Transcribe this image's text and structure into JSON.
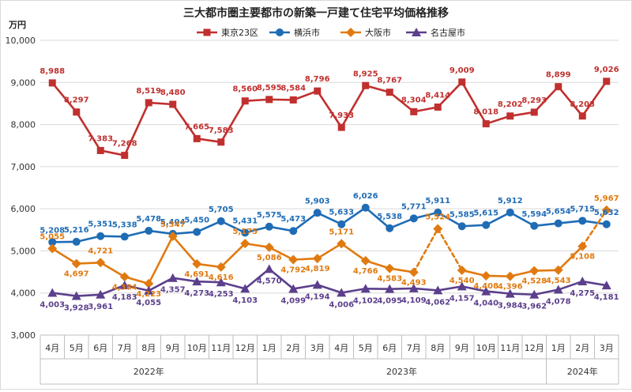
{
  "chart_data": {
    "type": "line",
    "title": "三大都市圏主要都市の新築一戸建て住宅平均価格推移",
    "ylabel": "万円",
    "ylim": [
      3000,
      10000
    ],
    "yticks": [
      3000,
      4000,
      5000,
      6000,
      7000,
      8000,
      9000,
      10000
    ],
    "ytick_labels": [
      "3,000",
      "4,000",
      "5,000",
      "6,000",
      "7,000",
      "8,000",
      "9,000",
      "10,000"
    ],
    "grid": true,
    "legend_position": "top",
    "categories": [
      "4月",
      "5月",
      "6月",
      "7月",
      "8月",
      "9月",
      "10月",
      "11月",
      "12月",
      "1月",
      "2月",
      "3月",
      "4月",
      "5月",
      "6月",
      "7月",
      "8月",
      "9月",
      "10月",
      "11月",
      "12月",
      "1月",
      "2月",
      "3月"
    ],
    "year_groups": [
      {
        "label": "2022年",
        "start": 0,
        "end": 8
      },
      {
        "label": "2023年",
        "start": 9,
        "end": 20
      },
      {
        "label": "2024年",
        "start": 21,
        "end": 23
      }
    ],
    "series": [
      {
        "name": "東京23区",
        "color": "#c0302f",
        "marker": "square",
        "values": [
          8988,
          8297,
          7383,
          7268,
          8519,
          8480,
          7665,
          7583,
          8560,
          8595,
          8584,
          8796,
          7933,
          8925,
          8767,
          8304,
          8414,
          9009,
          8018,
          8202,
          8293,
          8899,
          8203,
          9026
        ],
        "labels": [
          "8,988",
          "8,297",
          "7,383",
          "7,268",
          "8,519",
          "8,480",
          "7,665",
          "7,583",
          "8,560",
          "8,595",
          "8,584",
          "8,796",
          "7,933",
          "8,925",
          "8,767",
          "8,304",
          "8,414",
          "9,009",
          "8,018",
          "8,202",
          "8,293",
          "8,899",
          "8,203",
          "9,026"
        ]
      },
      {
        "name": "横浜市",
        "color": "#1f6cb5",
        "marker": "circle",
        "values": [
          5208,
          5216,
          5351,
          5338,
          5478,
          5404,
          5450,
          5705,
          5431,
          5575,
          5473,
          5903,
          5633,
          6026,
          5538,
          5771,
          5911,
          5585,
          5615,
          5912,
          5594,
          5654,
          5715,
          5632
        ],
        "labels": [
          "5,208",
          "5,216",
          "5,351",
          "5,338",
          "5,478",
          "5,404",
          "5,450",
          "5,705",
          "5,431",
          "5,575",
          "5,473",
          "5,903",
          "5,633",
          "6,026",
          "5,538",
          "5,771",
          "5,911",
          "5,585",
          "5,615",
          "5,912",
          "5,594",
          "5,654",
          "5,715",
          "5,632"
        ]
      },
      {
        "name": "大阪市",
        "color": "#e07a10",
        "marker": "diamond",
        "values": [
          5055,
          4697,
          4721,
          4384,
          4223,
          5347,
          4691,
          4616,
          5175,
          5086,
          4792,
          4819,
          5171,
          4766,
          4583,
          4493,
          5524,
          4540,
          4408,
          4396,
          4528,
          4543,
          5108,
          5967
        ],
        "labels": [
          "5,055",
          "4,697",
          "4,721",
          "4,384",
          "4,223",
          "5,347",
          "4,691",
          "4,616",
          "5,175",
          "5,086",
          "4,792",
          "4,819",
          "5,171",
          "4,766",
          "4,583",
          "4,493",
          "5,524",
          "4,540",
          "4,408",
          "4,396",
          "4,528",
          "4,543",
          "5,108",
          "5,967"
        ]
      },
      {
        "name": "名古屋市",
        "color": "#5b3f8c",
        "marker": "triangle",
        "values": [
          4003,
          3928,
          3961,
          4183,
          4055,
          4357,
          4273,
          4253,
          4103,
          4570,
          4099,
          4194,
          4006,
          4102,
          4095,
          4109,
          4062,
          4157,
          4040,
          3984,
          3962,
          4078,
          4275,
          4181
        ],
        "labels": [
          "4,003",
          "3,928",
          "3,961",
          "4,183",
          "4,055",
          "4,357",
          "4,273",
          "4,253",
          "4,103",
          "4,570",
          "4,099",
          "4,194",
          "4,006",
          "4,102",
          "4,095",
          "4,109",
          "4,062",
          "4,157",
          "4,040",
          "3,984",
          "3,962",
          "4,078",
          "4,275",
          "4,181"
        ]
      }
    ]
  }
}
